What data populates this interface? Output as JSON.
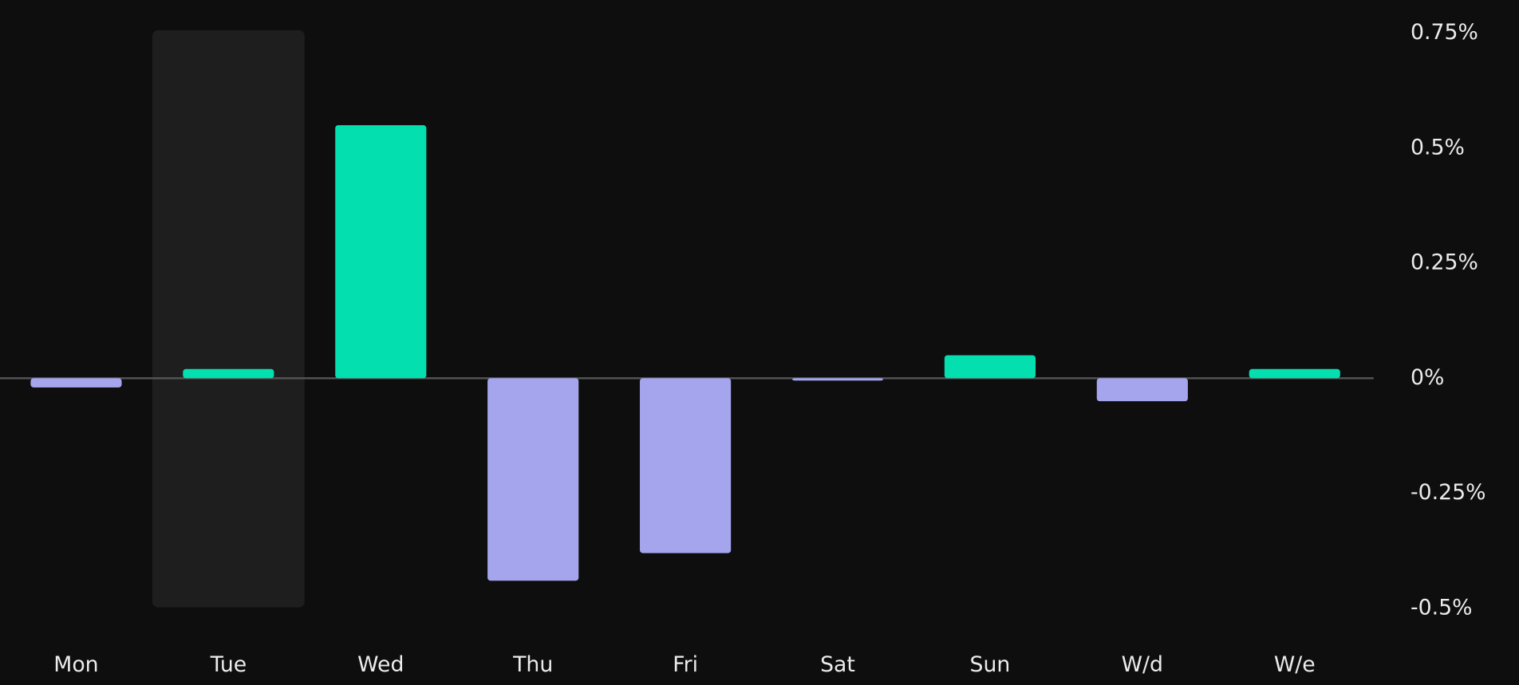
{
  "chart_data": {
    "type": "bar",
    "categories": [
      "Mon",
      "Tue",
      "Wed",
      "Thu",
      "Fri",
      "Sat",
      "Sun",
      "W/d",
      "W/e"
    ],
    "values": [
      -0.02,
      0.02,
      0.55,
      -0.44,
      -0.38,
      -0.005,
      0.05,
      -0.05,
      0.02
    ],
    "colors": {
      "positive": "#03dfae",
      "negative": "#a5a5ee"
    },
    "highlight_index": 1,
    "ylim": [
      -0.5,
      0.75
    ],
    "yticks": [
      {
        "value": 0.75,
        "label": "0.75%"
      },
      {
        "value": 0.5,
        "label": "0.5%"
      },
      {
        "value": 0.25,
        "label": "0.25%"
      },
      {
        "value": 0,
        "label": "0%"
      },
      {
        "value": -0.25,
        "label": "-0.25%"
      },
      {
        "value": -0.5,
        "label": "-0.5%"
      }
    ],
    "grid": false
  }
}
